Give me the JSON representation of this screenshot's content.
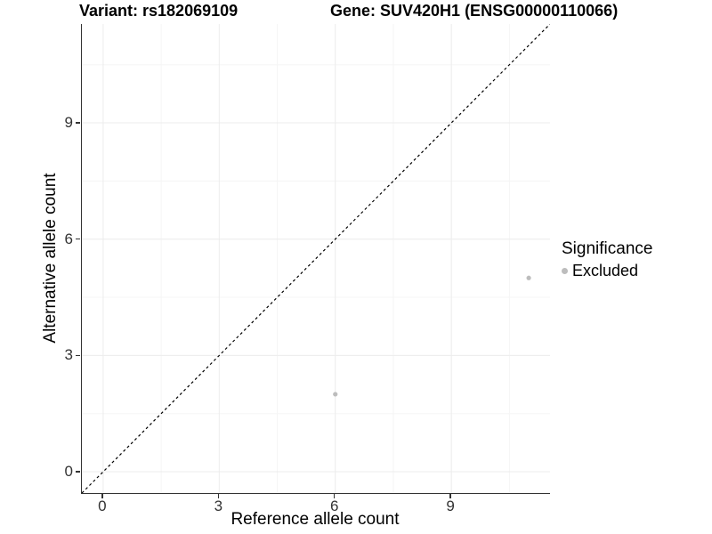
{
  "titles": {
    "variant": "Variant: rs182069109",
    "gene": "Gene: SUV420H1 (ENSG00000110066)"
  },
  "chart_data": {
    "type": "scatter",
    "xlabel": "Reference allele count",
    "ylabel": "Alternative allele count",
    "xlim": [
      -0.55,
      11.55
    ],
    "ylim": [
      -0.55,
      11.55
    ],
    "xticks": [
      0,
      3,
      6,
      9
    ],
    "yticks": [
      0,
      3,
      6,
      9
    ],
    "minor_gridlines": [
      1.5,
      4.5,
      7.5,
      10.5
    ],
    "grid": true,
    "abline": {
      "slope": 1,
      "intercept": 0,
      "style": "dashed",
      "color": "#000000"
    },
    "series": [
      {
        "name": "Excluded",
        "color": "#bdbdbd",
        "points": [
          [
            6,
            2
          ],
          [
            11,
            5
          ]
        ]
      }
    ]
  },
  "legend": {
    "title": "Significance",
    "position": "right",
    "items": [
      {
        "label": "Excluded",
        "color": "#bdbdbd"
      }
    ]
  },
  "theme": {
    "grid_major_color": "#ececec",
    "grid_minor_color": "#f5f5f5",
    "axis_color": "#333333",
    "point_color": "#bdbdbd"
  }
}
